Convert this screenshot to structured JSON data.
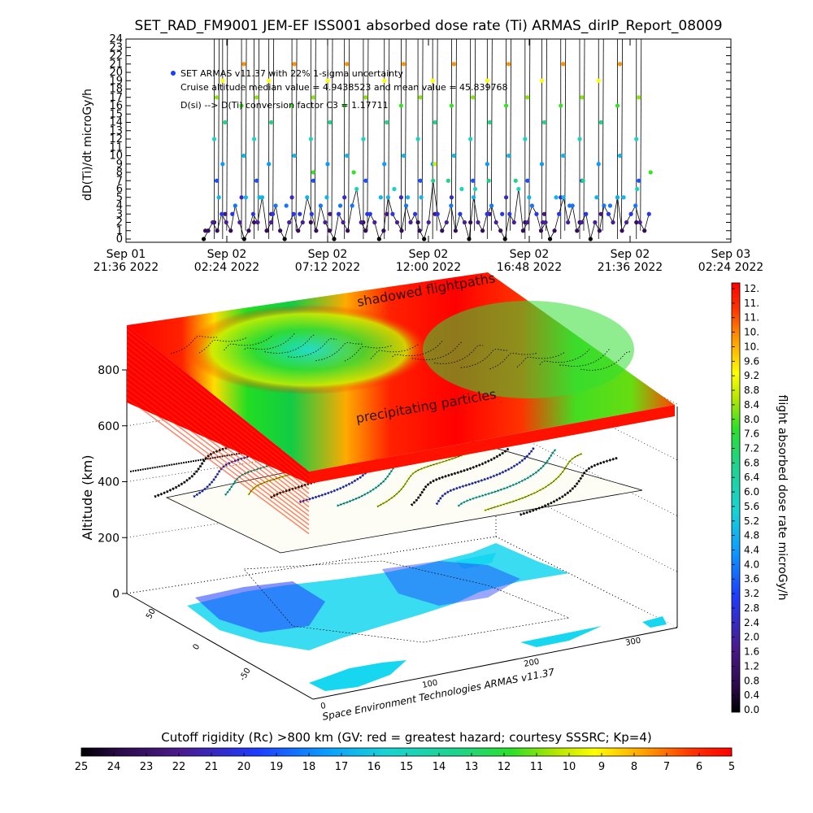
{
  "chart_data": [
    {
      "type": "line",
      "title": "SET_RAD_FM9001  JEM-EF ISS001 absorbed dose rate (Ti) ARMAS_dirIP_Report_08009",
      "ylabel": "dD(Ti)/dt microGy/h",
      "ylim": [
        0,
        24
      ],
      "yticks": [
        "0",
        "1",
        "2",
        "3",
        "4",
        "5",
        "6",
        "7",
        "8",
        "9",
        "10",
        "11",
        "12",
        "13",
        "14",
        "15",
        "16",
        "17",
        "18",
        "19",
        "20",
        "21",
        "22",
        "23",
        "24"
      ],
      "xticks": [
        {
          "line1": "Sep 01",
          "line2": "21:36 2022"
        },
        {
          "line1": "Sep 02",
          "line2": "02:24 2022"
        },
        {
          "line1": "Sep 02",
          "line2": "07:12 2022"
        },
        {
          "line1": "Sep 02",
          "line2": "12:00 2022"
        },
        {
          "line1": "Sep 02",
          "line2": "16:48 2022"
        },
        {
          "line1": "Sep 02",
          "line2": "21:36 2022"
        },
        {
          "line1": "Sep 03",
          "line2": "02:24 2022"
        }
      ],
      "xlim_hours": [
        0,
        28.8
      ],
      "data_span_hours": [
        3.7,
        24.9
      ],
      "annotations": [
        "SET ARMAS v11.37 with 22% 1-sigma uncertainty",
        "Cruise altitude median value = 4.9438523 and mean value = 45.839768",
        "D(si) --> D(Ti) conversion factor C3 = 1.17711"
      ],
      "series": [
        {
          "baseline_values": [
            0,
            1,
            2,
            1,
            3,
            2,
            1,
            4,
            2,
            0,
            1,
            3,
            2,
            5,
            1,
            2,
            4,
            1,
            0,
            2,
            3,
            1,
            2,
            5,
            3,
            1,
            4,
            2,
            1,
            0,
            3,
            2,
            1,
            4,
            6,
            2,
            1,
            3,
            2,
            0,
            1,
            5,
            3,
            2,
            1,
            4,
            2,
            3,
            1,
            0,
            2,
            7,
            3,
            1,
            2,
            4,
            1,
            3,
            2,
            0,
            5,
            2,
            1,
            3,
            4,
            2,
            1,
            0,
            3,
            2,
            6,
            1,
            2,
            4,
            3,
            1,
            2,
            0,
            1,
            3,
            5,
            2,
            4,
            1,
            2,
            3,
            0,
            2,
            1,
            4,
            3,
            2,
            5,
            1,
            2,
            3,
            4,
            2,
            1,
            3
          ],
          "spike_hours": [
            4.2,
            4.6,
            5.5,
            6.1,
            6.8,
            7.9,
            8.8,
            9.6,
            10.4,
            11.3,
            12.3,
            13.1,
            13.9,
            14.6,
            15.5,
            16.4,
            17.2,
            18.1,
            19.0,
            19.8,
            20.7,
            21.6,
            22.5,
            23.4,
            24.3
          ]
        }
      ]
    },
    {
      "type": "heatmap",
      "ylabel": "Altitude (km)",
      "zticks": [
        "0",
        "200",
        "400",
        "600",
        "800"
      ],
      "xticks": [
        "0",
        "100",
        "200",
        "300"
      ],
      "yticks": [
        "-50",
        "0",
        "50"
      ],
      "layer_labels": [
        "shadowed flightpaths",
        "precipitating particles"
      ],
      "footer": "Space Environment Technologies ARMAS v11.37"
    }
  ],
  "colorbar_right": {
    "label": "flight absorbed dose rate microGy/h",
    "ticks": [
      "12.",
      "11.",
      "11.",
      "10.",
      "10.",
      "9.6",
      "9.2",
      "8.8",
      "8.4",
      "8.0",
      "7.6",
      "7.2",
      "6.8",
      "6.4",
      "6.0",
      "5.6",
      "5.2",
      "4.8",
      "4.4",
      "4.0",
      "3.6",
      "3.2",
      "2.8",
      "2.4",
      "2.0",
      "1.6",
      "1.2",
      "0.8",
      "0.4",
      "0.0"
    ]
  },
  "colorbar_bottom": {
    "label": "Cutoff rigidity (Rc) >800 km (GV: red = greatest hazard; courtesy SSSRC; Kp=4)",
    "ticks": [
      "25",
      "24",
      "23",
      "22",
      "21",
      "20",
      "19",
      "18",
      "17",
      "16",
      "15",
      "14",
      "13",
      "12",
      "11",
      "10",
      "9",
      "8",
      "7",
      "6",
      "5"
    ]
  }
}
